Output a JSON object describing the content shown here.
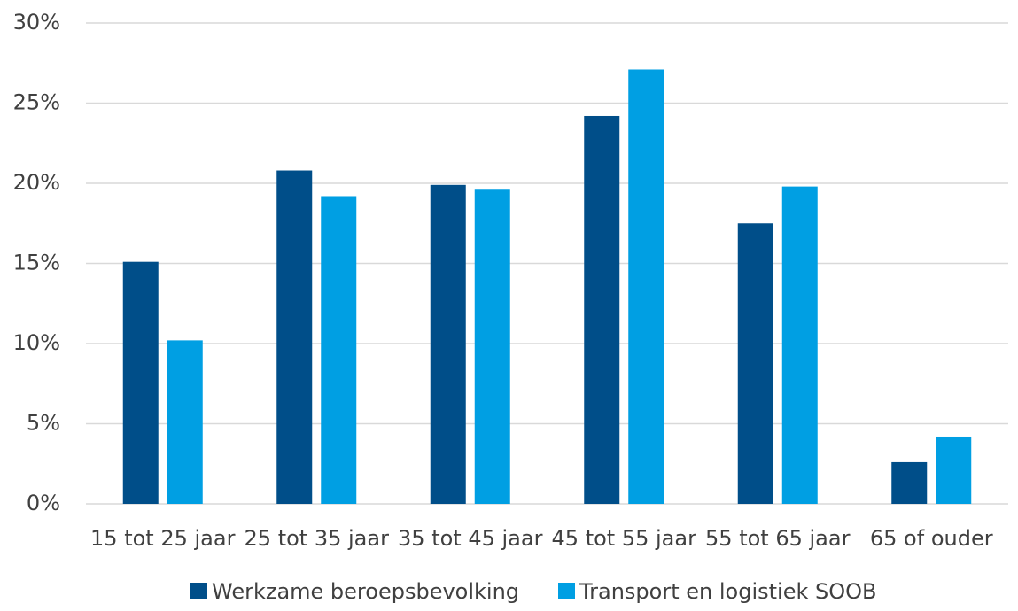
{
  "chart_data": {
    "type": "bar",
    "categories": [
      "15 tot 25 jaar",
      "25 tot 35 jaar",
      "35 tot 45 jaar",
      "45 tot 55 jaar",
      "55 tot 65 jaar",
      "65 of ouder"
    ],
    "series": [
      {
        "name": "Werkzame beroepsbevolking",
        "color": "#004e89",
        "values": [
          15.1,
          20.8,
          19.9,
          24.2,
          17.5,
          2.6
        ]
      },
      {
        "name": "Transport en logistiek SOOB",
        "color": "#009fe3",
        "values": [
          10.2,
          19.2,
          19.6,
          27.1,
          19.8,
          4.2
        ]
      }
    ],
    "ylim": [
      0,
      30
    ],
    "yticks": [
      {
        "value": 0,
        "label": "0%"
      },
      {
        "value": 5,
        "label": "5%"
      },
      {
        "value": 10,
        "label": "10%"
      },
      {
        "value": 15,
        "label": "15%"
      },
      {
        "value": 20,
        "label": "20%"
      },
      {
        "value": 25,
        "label": "25%"
      },
      {
        "value": 30,
        "label": "30%"
      }
    ],
    "grid": true,
    "legend": "bottom"
  }
}
